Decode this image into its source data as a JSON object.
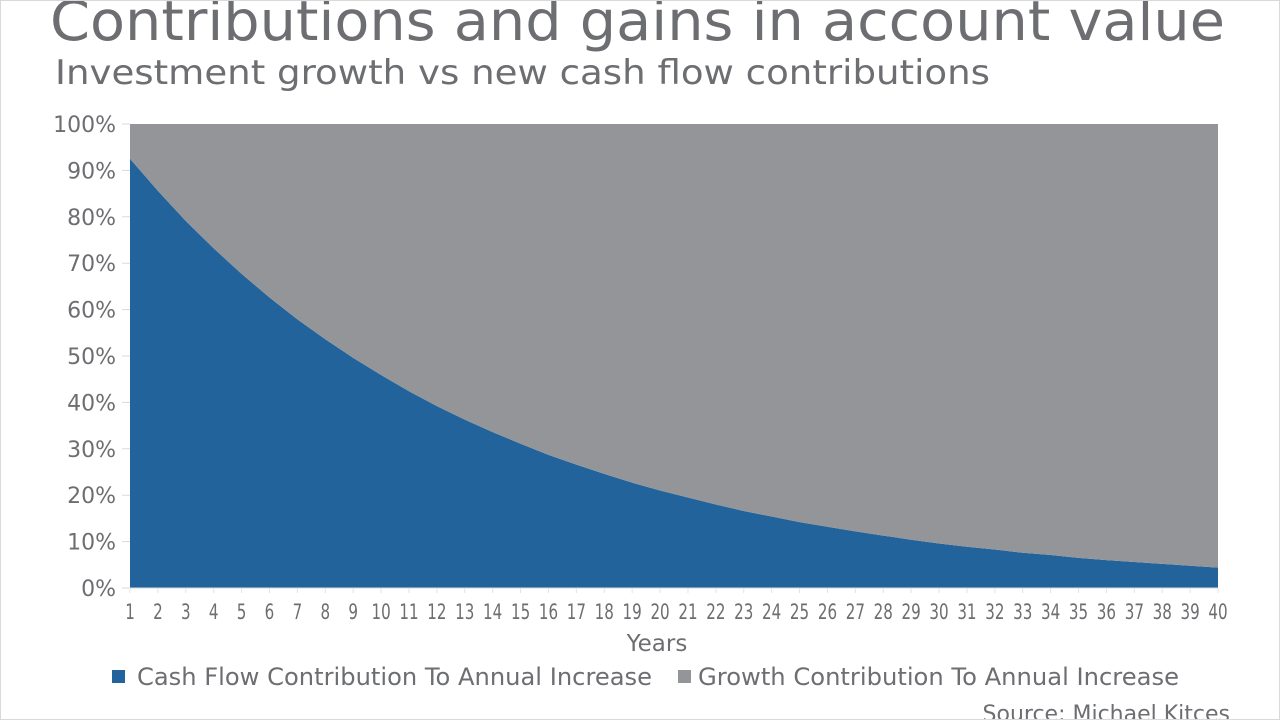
{
  "chart_data": {
    "type": "area",
    "stacked": true,
    "title": "Contributions and gains in account value",
    "subtitle": "Investment growth vs new cash flow contributions",
    "xlabel": "Years",
    "ylabel": "",
    "x": [
      1,
      2,
      3,
      4,
      5,
      6,
      7,
      8,
      9,
      10,
      11,
      12,
      13,
      14,
      15,
      16,
      17,
      18,
      19,
      20,
      21,
      22,
      23,
      24,
      25,
      26,
      27,
      28,
      29,
      30,
      31,
      32,
      33,
      34,
      35,
      36,
      37,
      38,
      39,
      40
    ],
    "ylim": [
      0,
      100
    ],
    "y_ticks": [
      "0%",
      "10%",
      "20%",
      "30%",
      "40%",
      "50%",
      "60%",
      "70%",
      "80%",
      "90%",
      "100%"
    ],
    "grid": false,
    "legend_position": "bottom",
    "series": [
      {
        "name": "Cash Flow Contribution To Annual Increase",
        "color": "#21639a",
        "values": [
          92.5,
          85.6,
          79.1,
          73.2,
          67.7,
          62.6,
          57.9,
          53.6,
          49.6,
          45.9,
          42.4,
          39.2,
          36.3,
          33.6,
          31.1,
          28.7,
          26.6,
          24.6,
          22.7,
          21.0,
          19.5,
          18.0,
          16.6,
          15.4,
          14.2,
          13.2,
          12.2,
          11.3,
          10.4,
          9.6,
          8.9,
          8.3,
          7.6,
          7.1,
          6.5,
          6.0,
          5.6,
          5.2,
          4.8,
          4.4
        ]
      },
      {
        "name": "Growth Contribution To Annual Increase",
        "color": "#939598",
        "values": [
          7.5,
          14.4,
          20.9,
          26.8,
          32.3,
          37.4,
          42.1,
          46.4,
          50.4,
          54.1,
          57.6,
          60.8,
          63.7,
          66.4,
          68.9,
          71.3,
          73.4,
          75.4,
          77.3,
          79.0,
          80.5,
          82.0,
          83.4,
          84.6,
          85.8,
          86.8,
          87.8,
          88.7,
          89.6,
          90.4,
          91.1,
          91.7,
          92.4,
          92.9,
          93.5,
          94.0,
          94.4,
          94.8,
          95.2,
          95.6
        ]
      }
    ],
    "source": "Source: Michael Kitces"
  }
}
